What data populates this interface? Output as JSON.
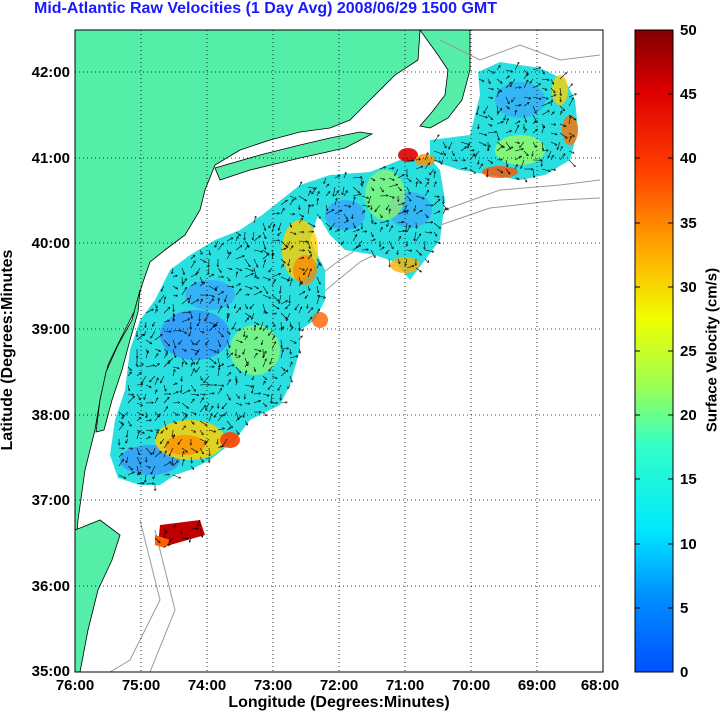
{
  "title": "Mid-Atlantic Raw Velocities (1 Day Avg) 2008/06/29 1500 GMT",
  "axes": {
    "xlabel": "Longitude (Degrees:Minutes)",
    "ylabel": "Latitude (Degrees:Minutes",
    "x_ticks": [
      "76:00",
      "75:00",
      "74:00",
      "73:00",
      "72:00",
      "71:00",
      "70:00",
      "69:00",
      "68:00"
    ],
    "y_ticks": [
      "42:00",
      "41:00",
      "40:00",
      "39:00",
      "38:00",
      "37:00",
      "36:00",
      "35:00"
    ],
    "xlim": [
      -76,
      -68
    ],
    "ylim": [
      35,
      42.5
    ],
    "grid": "dotted"
  },
  "colorbar": {
    "label": "Surface Velocity (cm/s)",
    "ticks": [
      "50",
      "45",
      "40",
      "35",
      "30",
      "25",
      "20",
      "15",
      "10",
      "5",
      "0"
    ],
    "range": [
      0,
      50
    ]
  },
  "colors": {
    "land": "#55eea8",
    "ocean": "#ffffff",
    "coverage_typical": "#2adfe0",
    "title": "#1a1aff"
  }
}
